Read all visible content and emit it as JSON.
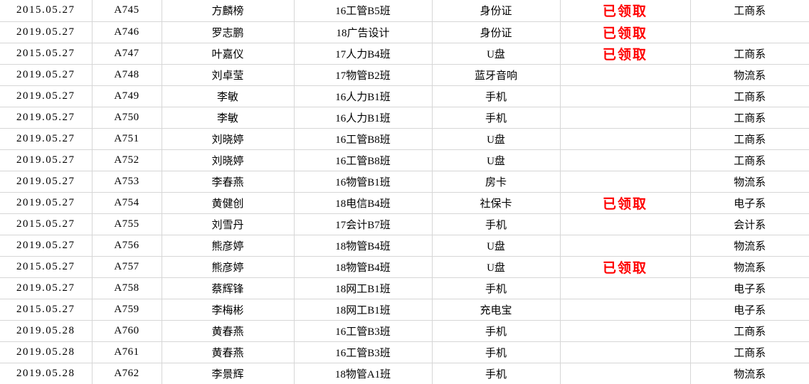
{
  "colors": {
    "background": "#ffffff",
    "gridline": "#d6d6d6",
    "text": "#000000",
    "status_claimed": "#ff0000"
  },
  "table": {
    "fields": [
      "date",
      "id",
      "name",
      "class",
      "item",
      "status",
      "dept"
    ],
    "claimed_label": "已领取",
    "rows": [
      {
        "date": "2015.05.27",
        "id": "A745",
        "name": "方麟榜",
        "class": "16工管B5班",
        "item": "身份证",
        "status": "已领取",
        "dept": "工商系"
      },
      {
        "date": "2019.05.27",
        "id": "A746",
        "name": "罗志鹏",
        "class": "18广告设计",
        "item": "身份证",
        "status": "已领取",
        "dept": ""
      },
      {
        "date": "2015.05.27",
        "id": "A747",
        "name": "叶嘉仪",
        "class": "17人力B4班",
        "item": "U盘",
        "status": "已领取",
        "dept": "工商系"
      },
      {
        "date": "2019.05.27",
        "id": "A748",
        "name": "刘卓莹",
        "class": "17物管B2班",
        "item": "蓝牙音响",
        "status": "",
        "dept": "物流系"
      },
      {
        "date": "2019.05.27",
        "id": "A749",
        "name": "李敏",
        "class": "16人力B1班",
        "item": "手机",
        "status": "",
        "dept": "工商系"
      },
      {
        "date": "2019.05.27",
        "id": "A750",
        "name": "李敏",
        "class": "16人力B1班",
        "item": "手机",
        "status": "",
        "dept": "工商系"
      },
      {
        "date": "2019.05.27",
        "id": "A751",
        "name": "刘晓婷",
        "class": "16工管B8班",
        "item": "U盘",
        "status": "",
        "dept": "工商系"
      },
      {
        "date": "2019.05.27",
        "id": "A752",
        "name": "刘晓婷",
        "class": "16工管B8班",
        "item": "U盘",
        "status": "",
        "dept": "工商系"
      },
      {
        "date": "2019.05.27",
        "id": "A753",
        "name": "李春燕",
        "class": "16物管B1班",
        "item": "房卡",
        "status": "",
        "dept": "物流系"
      },
      {
        "date": "2019.05.27",
        "id": "A754",
        "name": "黄健创",
        "class": "18电信B4班",
        "item": "社保卡",
        "status": "已领取",
        "dept": "电子系"
      },
      {
        "date": "2015.05.27",
        "id": "A755",
        "name": "刘雪丹",
        "class": "17会计B7班",
        "item": "手机",
        "status": "",
        "dept": "会计系"
      },
      {
        "date": "2019.05.27",
        "id": "A756",
        "name": "熊彦婷",
        "class": "18物管B4班",
        "item": "U盘",
        "status": "",
        "dept": "物流系"
      },
      {
        "date": "2015.05.27",
        "id": "A757",
        "name": "熊彦婷",
        "class": "18物管B4班",
        "item": "U盘",
        "status": "已领取",
        "dept": "物流系"
      },
      {
        "date": "2019.05.27",
        "id": "A758",
        "name": "蔡辉锋",
        "class": "18网工B1班",
        "item": "手机",
        "status": "",
        "dept": "电子系"
      },
      {
        "date": "2015.05.27",
        "id": "A759",
        "name": "李梅彬",
        "class": "18网工B1班",
        "item": "充电宝",
        "status": "",
        "dept": "电子系"
      },
      {
        "date": "2019.05.28",
        "id": "A760",
        "name": "黄春燕",
        "class": "16工管B3班",
        "item": "手机",
        "status": "",
        "dept": "工商系"
      },
      {
        "date": "2019.05.28",
        "id": "A761",
        "name": "黄春燕",
        "class": "16工管B3班",
        "item": "手机",
        "status": "",
        "dept": "工商系"
      },
      {
        "date": "2019.05.28",
        "id": "A762",
        "name": "李景辉",
        "class": "18物管A1班",
        "item": "手机",
        "status": "",
        "dept": "物流系"
      }
    ]
  }
}
